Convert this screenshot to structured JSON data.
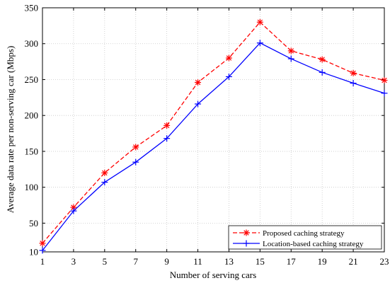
{
  "chart_data": {
    "type": "line",
    "xlabel": "Number of serving cars",
    "ylabel": "Average data rate per non-serving car (Mbps)",
    "x": [
      1,
      3,
      5,
      7,
      9,
      11,
      13,
      15,
      17,
      19,
      21,
      23
    ],
    "xticks": [
      "1",
      "3",
      "5",
      "7",
      "9",
      "11",
      "13",
      "15",
      "17",
      "19",
      "21",
      "23"
    ],
    "yticks": [
      "10",
      "50",
      "100",
      "150",
      "200",
      "250",
      "300",
      "350"
    ],
    "ytick_values": [
      10,
      50,
      100,
      150,
      200,
      250,
      300,
      350
    ],
    "xlim": [
      1,
      23
    ],
    "ylim": [
      10,
      350
    ],
    "grid": true,
    "legend_position": "bottom-right",
    "series": [
      {
        "name": "Proposed caching strategy",
        "color": "#ff0000",
        "line_style": "dashed",
        "marker": "asterisk",
        "values": [
          22,
          72,
          120,
          156,
          186,
          246,
          280,
          330,
          290,
          278,
          259,
          249
        ]
      },
      {
        "name": "Location-based caching strategy",
        "color": "#0000ff",
        "line_style": "solid",
        "marker": "plus",
        "values": [
          12,
          67,
          107,
          135,
          168,
          216,
          254,
          301,
          279,
          260,
          245,
          231
        ]
      }
    ]
  }
}
